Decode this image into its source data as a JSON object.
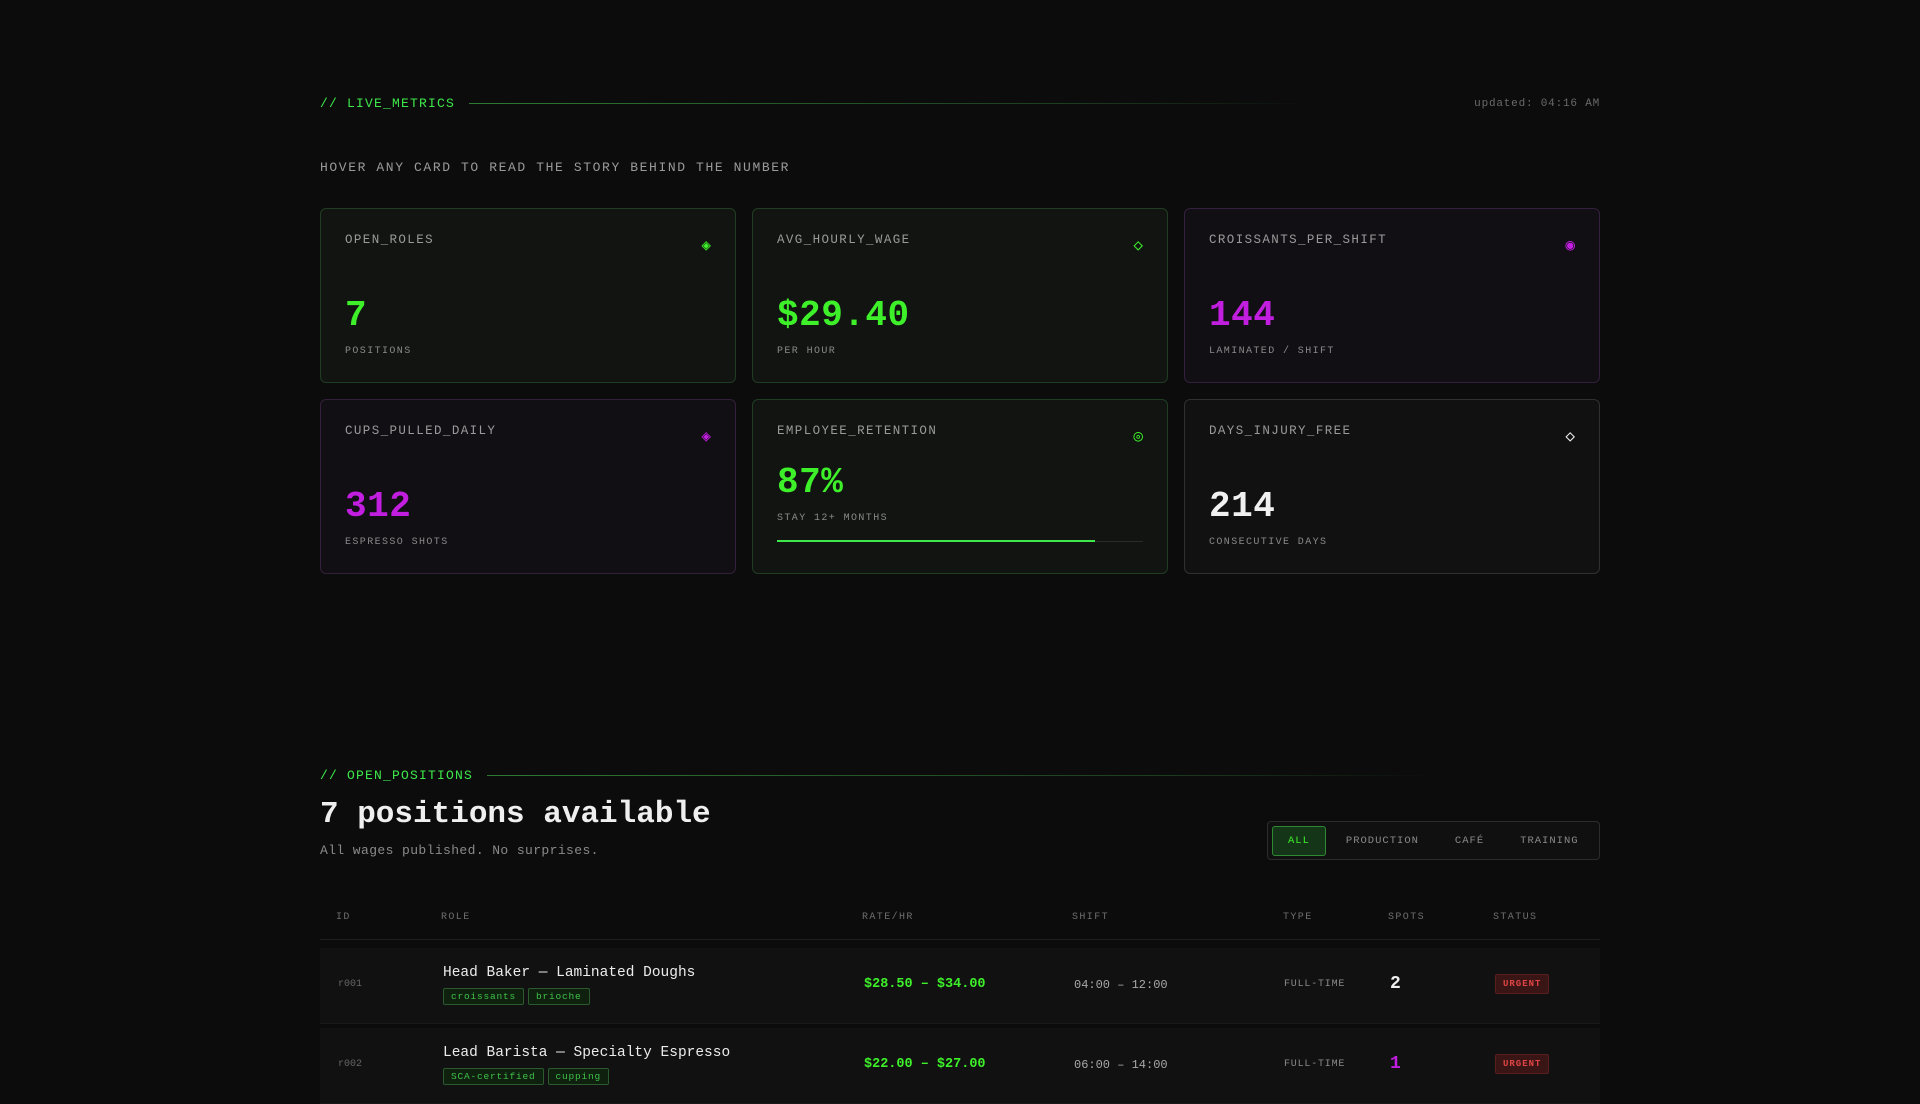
{
  "metrics_section": {
    "label": "// LIVE_METRICS",
    "updated": "updated: 04:16 AM",
    "hint": "HOVER ANY CARD TO READ THE STORY BEHIND THE NUMBER"
  },
  "cards": [
    {
      "title": "OPEN_ROLES",
      "icon": "◈",
      "value": "7",
      "sub": "POSITIONS",
      "accent": "#3ef02a"
    },
    {
      "title": "AVG_HOURLY_WAGE",
      "icon": "◇",
      "value": "$29.40",
      "sub": "PER HOUR",
      "accent": "#3ef02a"
    },
    {
      "title": "CROISSANTS_PER_SHIFT",
      "icon": "◉",
      "value": "144",
      "sub": "LAMINATED / SHIFT",
      "accent": "#c21ee0"
    },
    {
      "title": "CUPS_PULLED_DAILY",
      "icon": "◈",
      "value": "312",
      "sub": "ESPRESSO SHOTS",
      "accent": "#c21ee0"
    },
    {
      "title": "EMPLOYEE_RETENTION",
      "icon": "◎",
      "value": "87%",
      "sub": "STAY 12+ MONTHS",
      "accent": "#3ef02a",
      "progress": 0.87
    },
    {
      "title": "DAYS_INJURY_FREE",
      "icon": "◇",
      "value": "214",
      "sub": "CONSECUTIVE DAYS",
      "accent": "#f0f0f0"
    }
  ],
  "positions_section": {
    "label": "// OPEN_POSITIONS",
    "title": "7 positions available",
    "subtitle": "All wages published. No surprises.",
    "filters": [
      "ALL",
      "PRODUCTION",
      "CAFÉ",
      "TRAINING"
    ],
    "active_filter": "ALL"
  },
  "table": {
    "headers": [
      "ID",
      "ROLE",
      "RATE/HR",
      "SHIFT",
      "TYPE",
      "SPOTS",
      "STATUS"
    ],
    "rows": [
      {
        "id": "r001",
        "role": "Head Baker — Laminated Doughs",
        "tags": [
          "croissants",
          "brioche"
        ],
        "rate": "$28.50 – $34.00",
        "shift": "04:00 – 12:00",
        "type": "FULL-TIME",
        "spots": "2",
        "status": "URGENT"
      },
      {
        "id": "r002",
        "role": "Lead Barista — Specialty Espresso",
        "tags": [
          "SCA-certified",
          "cupping"
        ],
        "rate": "$22.00 – $27.00",
        "shift": "06:00 – 14:00",
        "type": "FULL-TIME",
        "spots": "1",
        "status": "URGENT"
      }
    ]
  },
  "colors": {
    "green": "#3ef02a",
    "purple": "#c21ee0",
    "urgent": "#e04545"
  }
}
